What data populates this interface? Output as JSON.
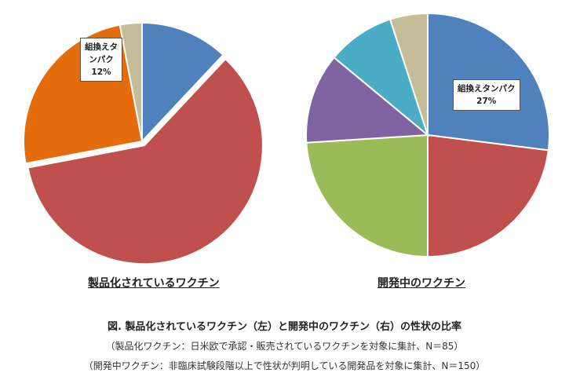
{
  "chart_data": [
    {
      "type": "pie",
      "caption": "製品化されているワクチン",
      "categories": [
        "組換えタンパク",
        "",
        "",
        ""
      ],
      "values": [
        12,
        60,
        25,
        3
      ],
      "colors": [
        "#4f81bd",
        "#c0504d",
        "#e46c0a",
        "#c4bd97"
      ],
      "annotations": [
        {
          "category": "組換えタンパク",
          "label_lines": [
            "組換えタ",
            "ンパク"
          ],
          "value_label": "12%"
        }
      ]
    },
    {
      "type": "pie",
      "caption": "開発中のワクチン",
      "categories": [
        "組換えタンパク",
        "",
        "",
        "",
        "",
        ""
      ],
      "values": [
        27,
        23,
        24,
        12,
        9,
        5
      ],
      "colors": [
        "#4f81bd",
        "#c0504d",
        "#9bbb59",
        "#8064a2",
        "#4bacc6",
        "#c4bd97"
      ],
      "annotations": [
        {
          "category": "組換えタンパク",
          "label_lines": [
            "組換えタンパク"
          ],
          "value_label": "27%"
        }
      ]
    }
  ],
  "figure_title": "図.  製品化されているワクチン（左）と開発中のワクチン（右）の性状の比率",
  "notes": [
    "（製品化ワクチン：日米欧で承認・販売されているワクチンを対象に集計、N＝85）",
    "（開発中ワクチン：非臨床試験段階以上で性状が判明している開発品を対象に集計、N＝150）"
  ]
}
